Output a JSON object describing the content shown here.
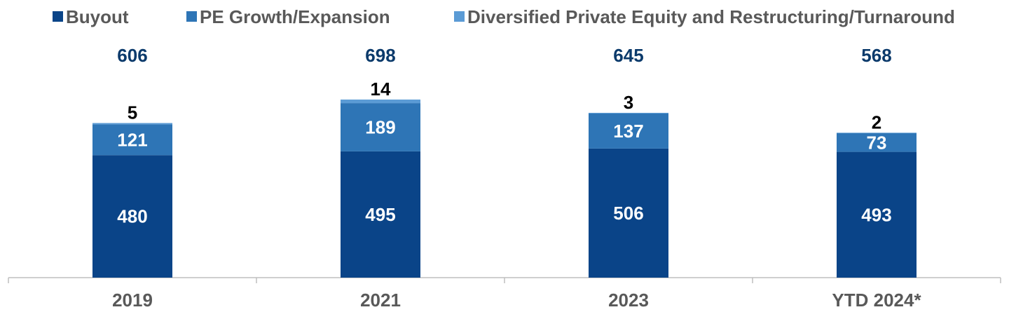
{
  "chart_data": {
    "type": "bar",
    "stacked": true,
    "categories": [
      "2019",
      "2021",
      "2023",
      "YTD 2024*"
    ],
    "series": [
      {
        "name": "Buyout",
        "values": [
          480,
          495,
          506,
          493
        ],
        "color": "#0a4488"
      },
      {
        "name": "PE Growth/Expansion",
        "values": [
          121,
          189,
          137,
          73
        ],
        "color": "#2e75b6"
      },
      {
        "name": "Diversified Private Equity and Restructuring/Turnaround",
        "values": [
          5,
          14,
          3,
          2
        ],
        "color": "#5b9bd5"
      }
    ],
    "totals": [
      "606",
      "698",
      "645",
      "568"
    ],
    "title": "",
    "xlabel": "",
    "ylabel": "",
    "ylim": [
      0,
      698
    ],
    "grid": false,
    "legend": "top"
  }
}
